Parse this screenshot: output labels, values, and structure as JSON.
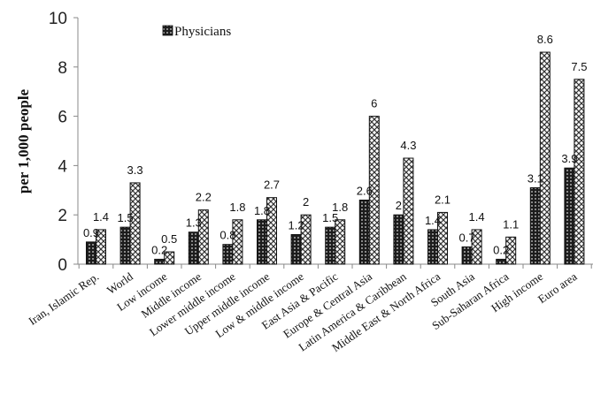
{
  "chart_data": {
    "type": "bar",
    "title": "",
    "xlabel": "",
    "ylabel": "per 1,000 people",
    "ylim": [
      0,
      10
    ],
    "yticks": [
      0,
      2,
      4,
      6,
      8,
      10
    ],
    "grid": false,
    "legend_position": "top",
    "categories": [
      "Iran, Islamic Rep.",
      "World",
      "Low income",
      "Middle income",
      "Lower middle income",
      "Upper middle income",
      "Low & middle income",
      "East Asia & Pacific",
      "Europe & Central Asia",
      "Latin America & Caribbean",
      "Middle East & North Africa",
      "South Asia",
      "Sub-Saharan Africa",
      "High income",
      "Euro area"
    ],
    "series": [
      {
        "name": "",
        "pattern": "dark-dots",
        "color": "#2a2a2a",
        "values": [
          0.9,
          1.5,
          0.2,
          1.3,
          0.8,
          1.8,
          1.2,
          1.5,
          2.6,
          2.0,
          1.4,
          0.7,
          0.2,
          3.1,
          3.9
        ],
        "labels": [
          "0.9",
          "1.5",
          "0.2",
          "1.3",
          "0.8",
          "1.8",
          "1.2",
          "1.5",
          "2.6",
          "2",
          "1.4",
          "0.7",
          "0.2",
          "3.1",
          "3.9"
        ]
      },
      {
        "name": "Physicians",
        "pattern": "crosshatch",
        "color": "#2a2a2a",
        "values": [
          1.4,
          3.3,
          0.5,
          2.2,
          1.8,
          2.7,
          2.0,
          1.8,
          6.0,
          4.3,
          2.1,
          1.4,
          1.1,
          8.6,
          7.5
        ],
        "labels": [
          "1.4",
          "3.3",
          "0.5",
          "2.2",
          "1.8",
          "2.7",
          "2",
          "1.8",
          "6",
          "4.3",
          "2.1",
          "1.4",
          "1.1",
          "8.6",
          "7.5"
        ]
      }
    ]
  }
}
